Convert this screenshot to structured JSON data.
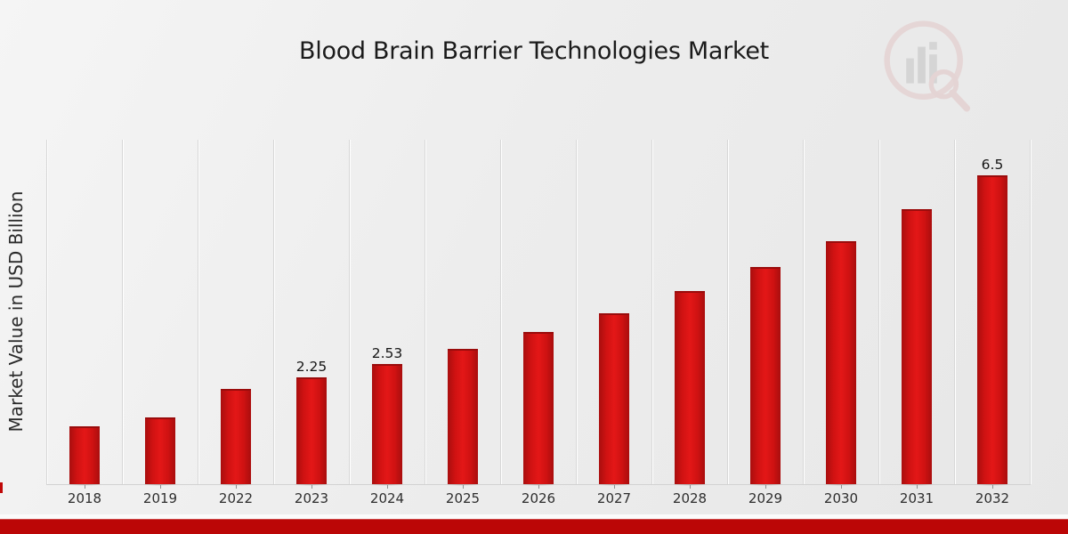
{
  "page": {
    "title": "Blood Brain Barrier Technologies Market"
  },
  "chart_data": {
    "type": "bar",
    "title": "Blood Brain Barrier Technologies Market",
    "xlabel": "",
    "ylabel": "Market Value in USD Billion",
    "categories": [
      "2018",
      "2019",
      "2022",
      "2023",
      "2024",
      "2025",
      "2026",
      "2027",
      "2028",
      "2029",
      "2030",
      "2031",
      "2032"
    ],
    "values": [
      1.21,
      1.4,
      2.0,
      2.25,
      2.53,
      2.85,
      3.2,
      3.6,
      4.06,
      4.58,
      5.12,
      5.79,
      6.5
    ],
    "data_labels": [
      null,
      null,
      null,
      "2.25",
      "2.53",
      null,
      null,
      null,
      null,
      null,
      null,
      null,
      "6.5"
    ],
    "ylim": [
      0,
      7.25
    ],
    "grid": "vertical category separators only",
    "legend": "none",
    "y_axis_ticks": "none (values implied by labeled bars)"
  },
  "colors": {
    "bar": "#c41212",
    "bar_edge_dark": "#9a0c0c",
    "footer_band": "#bb0606",
    "background": "#ededed",
    "title_text": "#1b1b1b",
    "axis_text": "#2e2e2e"
  },
  "watermark": {
    "name": "market-research-logo",
    "description": "faint circular logo with bar chart and magnifying glass"
  }
}
